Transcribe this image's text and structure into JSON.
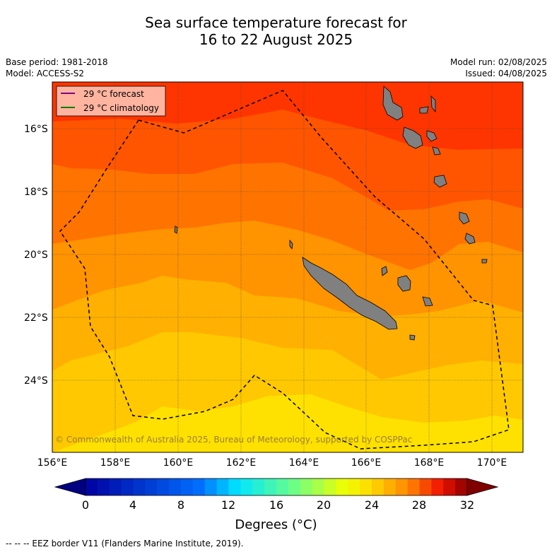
{
  "header": {
    "title_line1": "Sea surface temperature forecast for",
    "title_line2": "16 to 22 August 2025",
    "base_period": "Base period: 1981-2018",
    "model": "Model: ACCESS-S2",
    "model_run": "Model run: 02/08/2025",
    "issued": "Issued: 04/08/2025"
  },
  "legend": {
    "forecast": "29 °C  forecast",
    "climatology": "29 °C  climatology",
    "forecast_color": "#800080",
    "climatology_color": "#008000"
  },
  "map": {
    "lon_range": [
      156,
      171
    ],
    "lat_range": [
      -26.2,
      -14.4
    ],
    "lon_ticks": [
      "156°E",
      "158°E",
      "160°E",
      "162°E",
      "164°E",
      "166°E",
      "168°E",
      "170°E"
    ],
    "lat_ticks": [
      "16°S",
      "18°S",
      "20°S",
      "22°S",
      "24°S"
    ],
    "copyright": "© Commonwealth of Australia 2025, Bureau of Meteorology, supported by COSPPac",
    "land_color": "#808080",
    "ocean_bands": [
      "#ff3500",
      "#ff5500",
      "#ff7300",
      "#ff9300",
      "#ffb000",
      "#ffc800",
      "#ffe100"
    ]
  },
  "colorbar": {
    "ticks": [
      "0",
      "4",
      "8",
      "12",
      "16",
      "20",
      "24",
      "28",
      "32"
    ],
    "title": "Degrees (°C)",
    "range": [
      0,
      32
    ]
  },
  "footnote": "--  --  -- EEZ border V11 (Flanders Marine Institute, 2019)."
}
